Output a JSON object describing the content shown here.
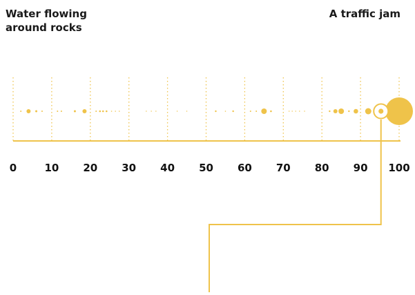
{
  "labels": {
    "left": "Water flowing around rocks",
    "right": "A traffic jam"
  },
  "colors": {
    "accent": "#EFC34A",
    "text": "#111111"
  },
  "scale": {
    "min": 0,
    "max": 100,
    "ticks": [
      "0",
      "10",
      "20",
      "30",
      "40",
      "50",
      "60",
      "70",
      "80",
      "90",
      "100"
    ]
  },
  "dots": [
    {
      "v": 2,
      "s": 1
    },
    {
      "v": 4,
      "s": 3
    },
    {
      "v": 6,
      "s": 1.5
    },
    {
      "v": 7.5,
      "s": 1
    },
    {
      "v": 11.5,
      "s": 1
    },
    {
      "v": 12.5,
      "s": 1
    },
    {
      "v": 16,
      "s": 1.5
    },
    {
      "v": 18.5,
      "s": 3
    },
    {
      "v": 21.5,
      "s": 1
    },
    {
      "v": 22.5,
      "s": 1.3
    },
    {
      "v": 23.3,
      "s": 1.3
    },
    {
      "v": 24.2,
      "s": 1.3
    },
    {
      "v": 25.5,
      "s": 0.8
    },
    {
      "v": 26.5,
      "s": 0.8
    },
    {
      "v": 27.5,
      "s": 0.8
    },
    {
      "v": 34.5,
      "s": 0.7
    },
    {
      "v": 35.8,
      "s": 0.7
    },
    {
      "v": 37,
      "s": 0.7
    },
    {
      "v": 42.5,
      "s": 0.7
    },
    {
      "v": 45,
      "s": 0.7
    },
    {
      "v": 52.5,
      "s": 1.2
    },
    {
      "v": 55,
      "s": 0.8
    },
    {
      "v": 57,
      "s": 1.2
    },
    {
      "v": 61.5,
      "s": 1
    },
    {
      "v": 63,
      "s": 1
    },
    {
      "v": 65,
      "s": 4
    },
    {
      "v": 66.8,
      "s": 1.3
    },
    {
      "v": 71.5,
      "s": 0.7
    },
    {
      "v": 72.3,
      "s": 0.7
    },
    {
      "v": 73.2,
      "s": 0.7
    },
    {
      "v": 74.2,
      "s": 0.7
    },
    {
      "v": 75.5,
      "s": 0.7
    },
    {
      "v": 82,
      "s": 1.2
    },
    {
      "v": 83.5,
      "s": 3
    },
    {
      "v": 85,
      "s": 4
    },
    {
      "v": 87,
      "s": 1.2
    },
    {
      "v": 88.8,
      "s": 3.3
    },
    {
      "v": 92,
      "s": 4.5
    },
    {
      "v": 100,
      "s": 20
    }
  ],
  "highlight": {
    "v": 95.3
  }
}
